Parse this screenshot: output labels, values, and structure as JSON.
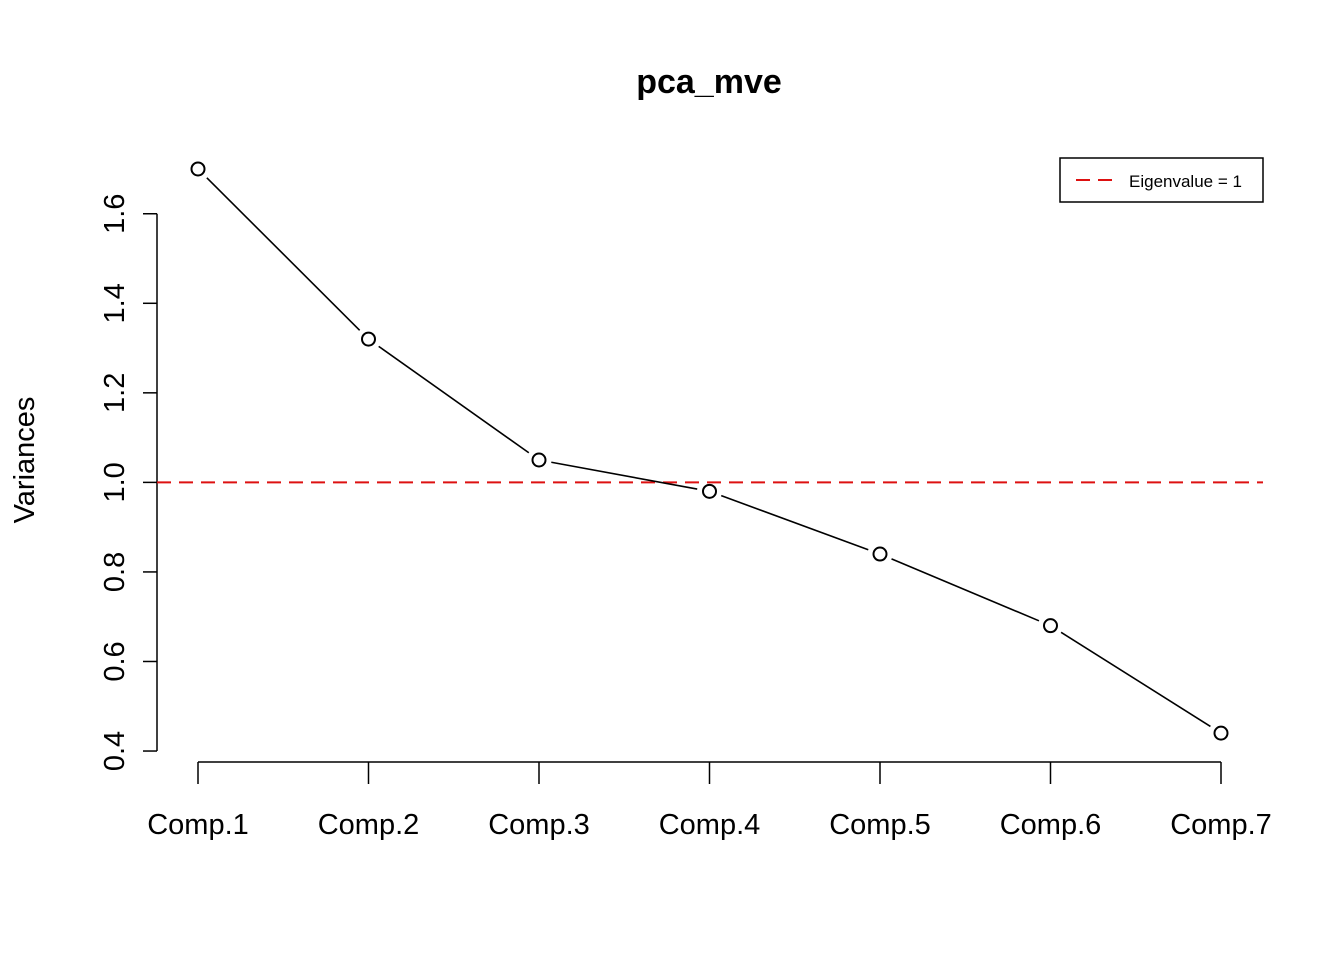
{
  "chart_data": {
    "type": "line",
    "title": "pca_mve",
    "xlabel": "",
    "ylabel": "Variances",
    "categories": [
      "Comp.1",
      "Comp.2",
      "Comp.3",
      "Comp.4",
      "Comp.5",
      "Comp.6",
      "Comp.7"
    ],
    "series": [
      {
        "values": [
          1.7,
          1.32,
          1.05,
          0.98,
          0.84,
          0.68,
          0.44
        ]
      }
    ],
    "reference_line": {
      "y": 1.0,
      "label": "Eigenvalue = 1",
      "color": "#dd1111",
      "style": "dashed"
    },
    "yticks": [
      0.4,
      0.6,
      0.8,
      1.0,
      1.2,
      1.4,
      1.6
    ],
    "ytick_labels": [
      "0.4",
      "0.6",
      "0.8",
      "1.0",
      "1.2",
      "1.4",
      "1.6"
    ],
    "ylim": [
      0.3755,
      1.7245
    ],
    "grid": false,
    "legend_position": "top-right",
    "line_color": "#000000",
    "marker": "open-circle"
  }
}
